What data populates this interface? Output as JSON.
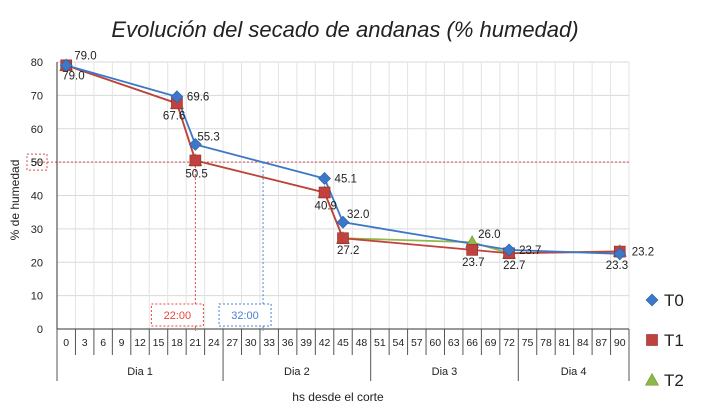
{
  "chart_data": {
    "type": "line",
    "title": "Evolución del secado de andanas (% humedad)",
    "xlabel": "hs desde el corte",
    "ylabel": "% de humedad",
    "ylim": [
      0,
      80
    ],
    "yticks": [
      0,
      10,
      20,
      30,
      40,
      50,
      60,
      70,
      80
    ],
    "x_tick_labels": [
      "0",
      "3",
      "6",
      "9",
      "12",
      "15",
      "18",
      "21",
      "24",
      "27",
      "30",
      "33",
      "36",
      "39",
      "42",
      "45",
      "48",
      "51",
      "54",
      "57",
      "60",
      "63",
      "66",
      "69",
      "72",
      "75",
      "78",
      "81",
      "84",
      "87",
      "90"
    ],
    "x_groups": [
      {
        "label": "Dia 1",
        "from": 0,
        "to": 9
      },
      {
        "label": "Dia 2",
        "from": 9,
        "to": 17
      },
      {
        "label": "Dia 3",
        "from": 17,
        "to": 25
      },
      {
        "label": "Dia 4",
        "from": 25,
        "to": 31
      }
    ],
    "series": [
      {
        "name": "T0",
        "color": "#3d78c8",
        "marker": "diamond",
        "x": [
          0,
          18,
          21,
          42,
          45,
          72,
          90
        ],
        "values": [
          79.0,
          69.6,
          55.3,
          45.1,
          32.0,
          23.7,
          22.5
        ],
        "labels": [
          {
            "x": 0,
            "y": 79.0,
            "text": "79.0"
          },
          {
            "x": 18,
            "y": 69.6,
            "text": "69.6"
          },
          {
            "x": 21,
            "y": 55.3,
            "text": "55.3"
          },
          {
            "x": 42,
            "y": 45.1,
            "text": "45.1"
          },
          {
            "x": 45,
            "y": 32.0,
            "text": "32.0"
          },
          {
            "x": 72,
            "y": 23.7,
            "text": "23.7"
          }
        ]
      },
      {
        "name": "T1",
        "color": "#c0413d",
        "marker": "square",
        "x": [
          0,
          18,
          21,
          42,
          45,
          66,
          72,
          90
        ],
        "values": [
          79.0,
          67.6,
          50.5,
          40.9,
          27.2,
          23.7,
          22.7,
          23.2
        ],
        "labels": [
          {
            "x": 0,
            "y": 79.0,
            "text": "79.0"
          },
          {
            "x": 18,
            "y": 67.6,
            "text": "67.6"
          },
          {
            "x": 21,
            "y": 50.5,
            "text": "50.5"
          },
          {
            "x": 42,
            "y": 40.9,
            "text": "40.9"
          },
          {
            "x": 45,
            "y": 27.2,
            "text": "27.2"
          },
          {
            "x": 66,
            "y": 23.7,
            "text": "23.7"
          },
          {
            "x": 72,
            "y": 22.7,
            "text": "22.7"
          },
          {
            "x": 90,
            "y": 23.2,
            "text": "23.2"
          }
        ]
      },
      {
        "name": "T2",
        "color": "#8fb84a",
        "marker": "triangle",
        "x": [
          0,
          18,
          21,
          42,
          45,
          66,
          72,
          90
        ],
        "values": [
          79.0,
          67.6,
          50.5,
          40.9,
          27.2,
          26.0,
          22.7,
          23.3
        ],
        "labels": [
          {
            "x": 66,
            "y": 26.0,
            "text": "26.0"
          },
          {
            "x": 90,
            "y": 23.3,
            "text": "23.3"
          }
        ]
      }
    ],
    "reference_line": {
      "y": 50,
      "label": "50",
      "color": "#d94a4a"
    },
    "time_markers": [
      {
        "x": 21,
        "label": "22:00",
        "color": "#e8453c"
      },
      {
        "x": 32,
        "label": "32:00",
        "color": "#4a7fd0"
      }
    ],
    "legend": {
      "position": "right",
      "items": [
        "T0",
        "T1",
        "T2"
      ]
    },
    "grid": {
      "y": true,
      "x": true
    }
  }
}
